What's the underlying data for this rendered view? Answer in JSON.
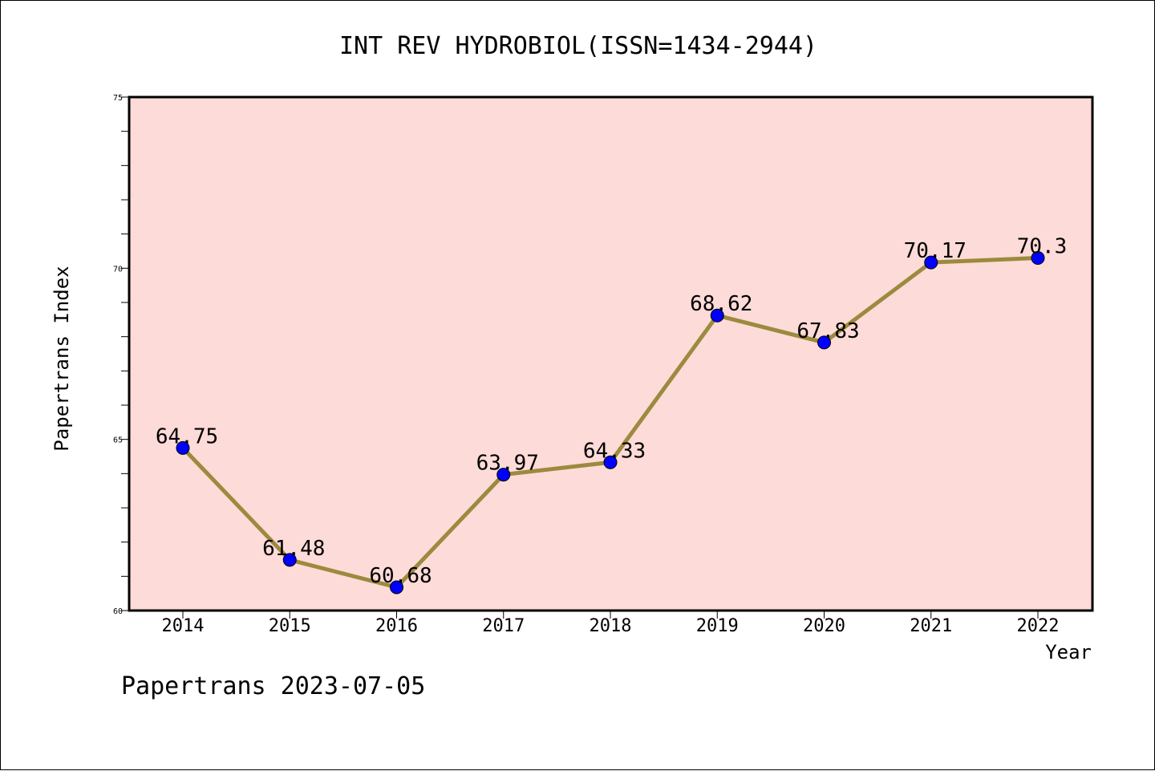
{
  "chart_data": {
    "type": "line",
    "title": "INT REV HYDROBIOL(ISSN=1434-2944)",
    "xlabel": "Year",
    "ylabel": "Papertrans Index",
    "categories": [
      "2014",
      "2015",
      "2016",
      "2017",
      "2018",
      "2019",
      "2020",
      "2021",
      "2022"
    ],
    "series": [
      {
        "values": [
          64.75,
          61.48,
          60.68,
          63.97,
          64.33,
          68.62,
          67.83,
          70.17,
          70.3
        ]
      }
    ],
    "data_labels": [
      "64.75",
      "61.48",
      "60.68",
      "63.97",
      "64.33",
      "68.62",
      "67.83",
      "70.17",
      "70.3"
    ],
    "ylim": [
      60,
      75
    ],
    "yticks": [
      60,
      65,
      70,
      75
    ],
    "ytick_labels": [
      "60",
      "65",
      "70",
      "75"
    ],
    "grid": false,
    "legend": "none",
    "colors": {
      "plot_background": "#fddbd8",
      "line": "#9c8a3e",
      "marker": "#0000ff",
      "axes": "#000000"
    }
  },
  "footer": "Papertrans 2023-07-05"
}
